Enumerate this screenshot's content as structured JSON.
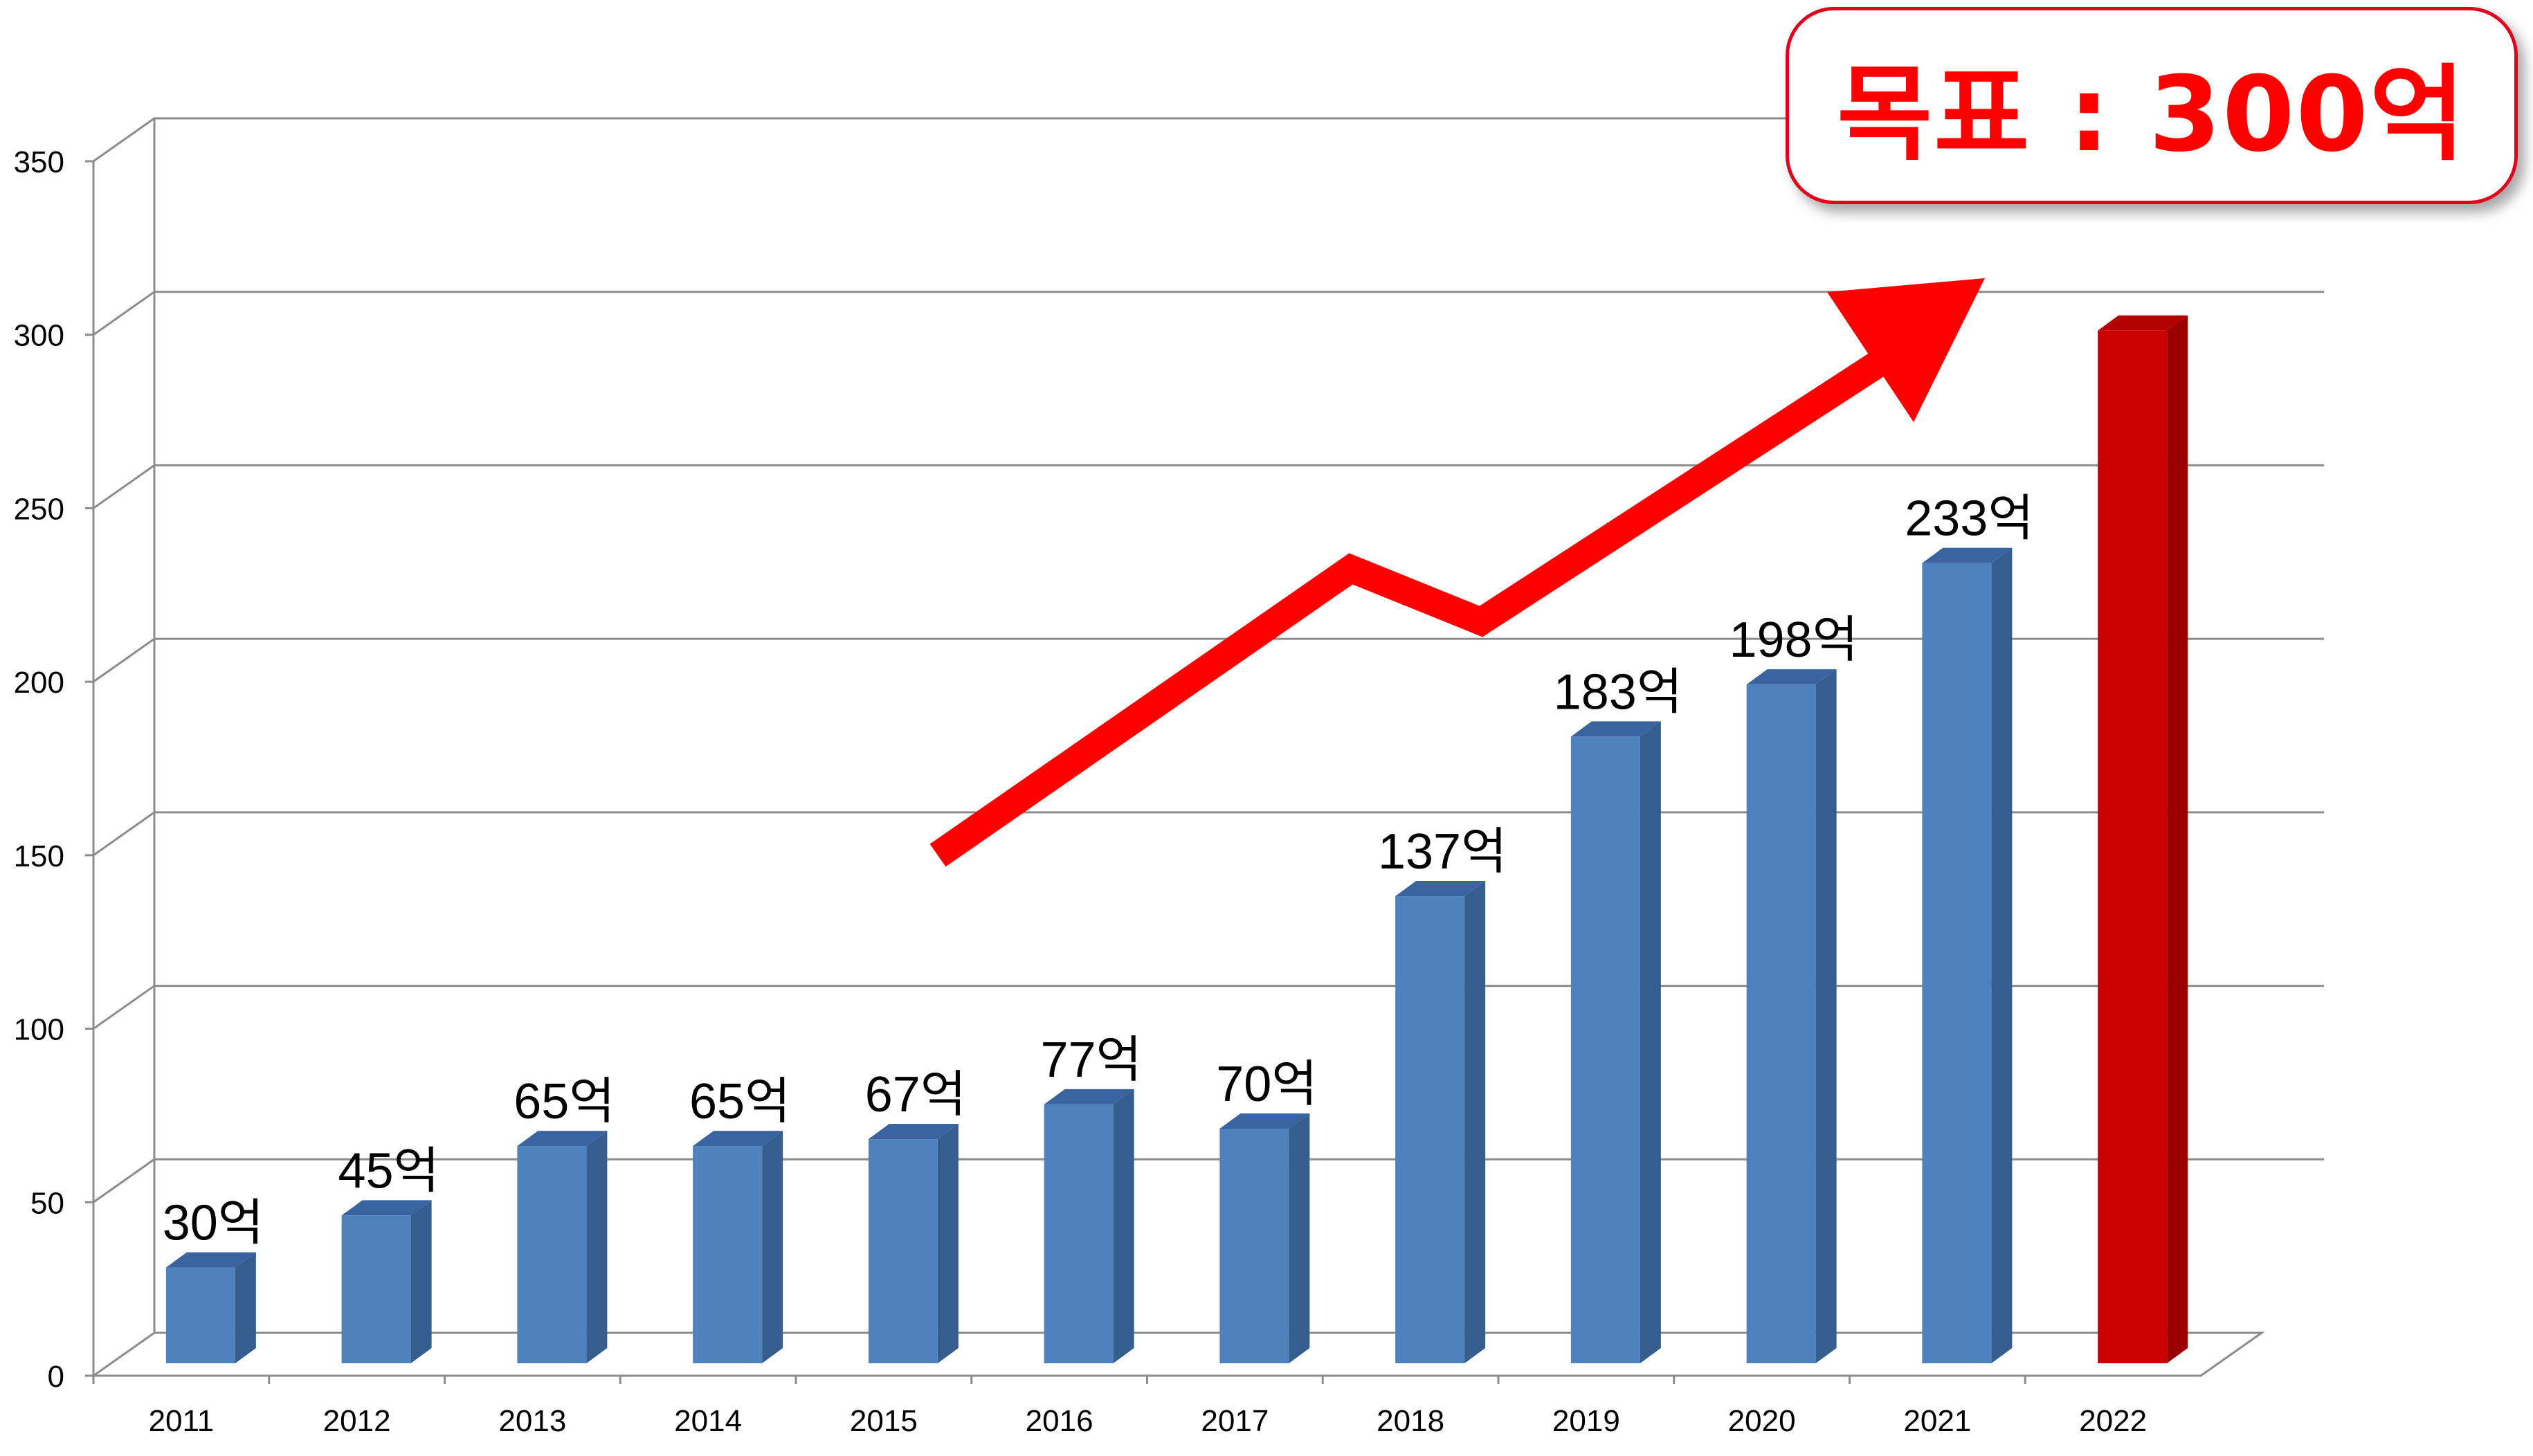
{
  "annotation": {
    "goal_text": "목표 : 300억"
  },
  "colors": {
    "bar_front": "#4f81bd",
    "bar_side": "#355d8e",
    "bar_top": "#3a64a0",
    "target_front": "#cc0000",
    "target_side": "#990000",
    "target_top": "#b30000",
    "arrow": "#ff0000",
    "grid": "#8c8c8c"
  },
  "chart_data": {
    "type": "bar",
    "categories": [
      "2011",
      "2012",
      "2013",
      "2014",
      "2015",
      "2016",
      "2017",
      "2018",
      "2019",
      "2020",
      "2021",
      "2022"
    ],
    "values": [
      30,
      45,
      65,
      65,
      67,
      77,
      70,
      137,
      183,
      198,
      233,
      300
    ],
    "data_labels": [
      "30억",
      "45억",
      "65억",
      "65억",
      "67억",
      "77억",
      "70억",
      "137억",
      "183억",
      "198억",
      "233억",
      ""
    ],
    "highlight_index": 11,
    "ylim": [
      0,
      350
    ],
    "yticks": [
      0,
      50,
      100,
      150,
      200,
      250,
      300,
      350
    ],
    "grid": true,
    "title": "",
    "xlabel": "",
    "ylabel": ""
  }
}
